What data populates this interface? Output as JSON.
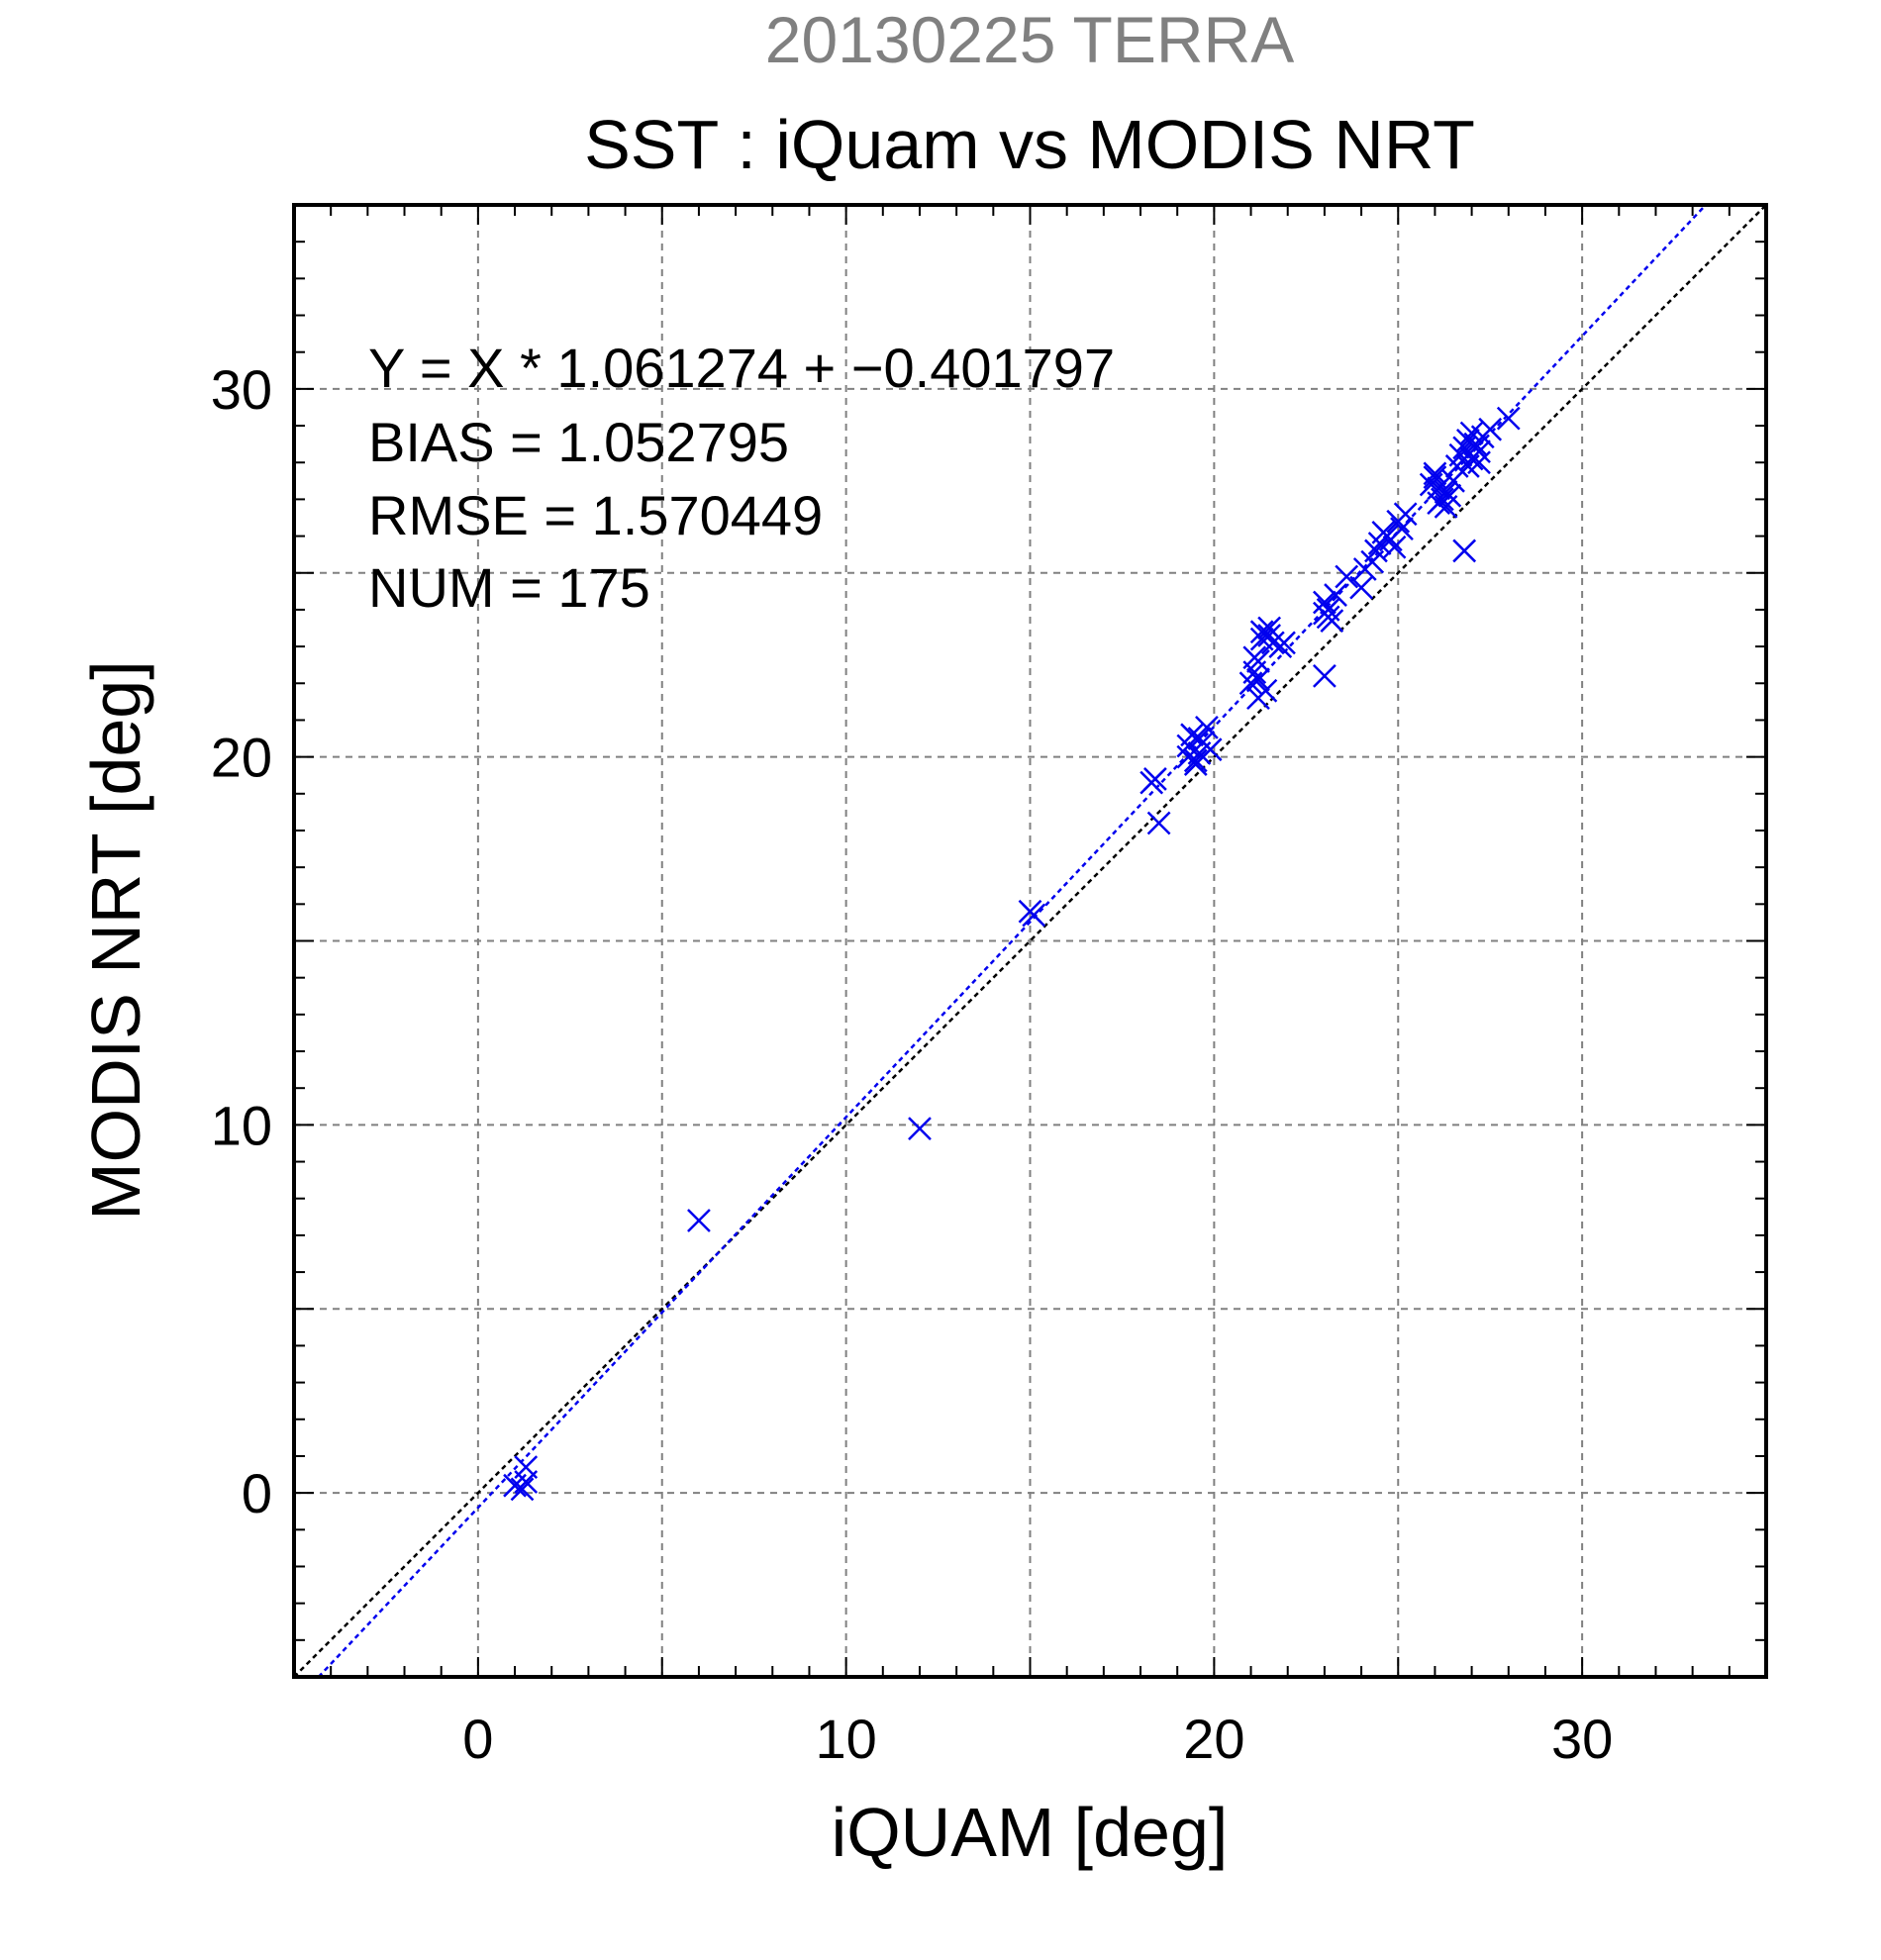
{
  "chart_data": {
    "type": "scatter",
    "supertitle": "20130225 TERRA",
    "title": "SST : iQuam vs MODIS NRT",
    "xlabel": "iQUAM [deg]",
    "ylabel": "MODIS NRT [deg]",
    "xlim": [
      -5,
      35
    ],
    "ylim": [
      -5,
      35
    ],
    "xticks": [
      "0",
      "10",
      "20",
      "30"
    ],
    "yticks": [
      "0",
      "10",
      "20",
      "30"
    ],
    "grid": true,
    "stats": {
      "equation": "Y = X * 1.061274 + −0.401797",
      "bias": "BIAS = 1.052795",
      "rmse": "RMSE = 1.570449",
      "num": "NUM = 175"
    },
    "fit": {
      "slope": 1.061274,
      "intercept": -0.401797
    },
    "colors": {
      "points": "#0000ee",
      "fit_line": "#0000ee",
      "identity_line": "#000000",
      "grid": "#808080",
      "supertitle": "#808080"
    },
    "marker": "x",
    "series": [
      {
        "x": [
          1.0,
          1.2,
          1.3,
          1.3,
          6.0,
          12.0,
          15.0,
          15.1,
          18.3,
          18.4,
          18.5,
          19.3,
          19.4,
          19.5,
          19.6,
          19.7,
          19.8,
          19.5,
          19.3,
          19.9,
          19.6,
          21.0,
          21.1,
          21.2,
          21.3,
          21.2,
          21.4,
          21.1,
          21.3,
          21.5,
          21.6,
          21.8,
          21.9,
          21.2,
          21.5,
          23.0,
          23.1,
          23.2,
          23.0,
          23.3,
          23.1,
          23.0,
          23.6,
          24.0,
          24.1,
          24.3,
          24.5,
          24.6,
          24.8,
          24.9,
          25.0,
          25.1,
          24.7,
          24.4,
          25.2,
          25.9,
          26.0,
          26.1,
          26.2,
          26.3,
          26.0,
          26.4,
          26.1,
          26.6,
          26.7,
          26.8,
          26.9,
          27.0,
          27.1,
          27.2,
          27.3,
          26.9,
          27.0,
          27.5,
          28.0,
          26.8,
          26.3,
          27.1,
          27.2,
          26.5
        ],
        "y": [
          0.2,
          0.1,
          0.3,
          0.7,
          7.4,
          9.9,
          15.8,
          15.7,
          19.3,
          19.4,
          18.2,
          20.3,
          20.6,
          19.8,
          20.1,
          20.4,
          20.8,
          19.9,
          20.0,
          20.2,
          20.5,
          22.0,
          22.3,
          22.6,
          23.2,
          21.6,
          21.8,
          22.7,
          23.4,
          23.3,
          23.1,
          23.0,
          23.1,
          22.1,
          23.5,
          24.2,
          24.0,
          23.7,
          23.9,
          24.4,
          23.8,
          22.2,
          24.9,
          24.6,
          25.1,
          25.3,
          25.8,
          26.1,
          25.9,
          25.7,
          26.4,
          26.2,
          26.0,
          25.6,
          26.6,
          27.4,
          27.7,
          27.3,
          27.0,
          26.8,
          27.6,
          27.1,
          26.9,
          27.9,
          28.2,
          28.4,
          28.6,
          28.8,
          28.5,
          28.3,
          28.7,
          27.9,
          28.1,
          28.9,
          29.2,
          25.6,
          27.2,
          28.4,
          28.0,
          27.5
        ]
      }
    ]
  }
}
